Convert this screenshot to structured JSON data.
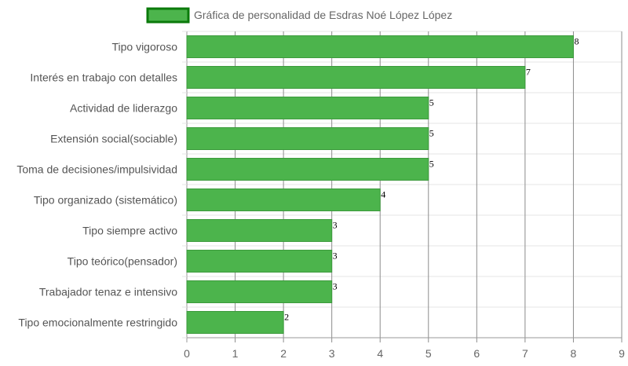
{
  "chart_data": {
    "type": "bar",
    "orientation": "horizontal",
    "legend": {
      "label": "Gráfica de personalidad de Esdras Noé López López",
      "position": "top"
    },
    "categories": [
      "Tipo vigoroso",
      "Interés en trabajo con detalles",
      "Actividad de liderazgo",
      "Extensión social(sociable)",
      "Toma de decisiones/impulsividad",
      "Tipo organizado (sistemático)",
      "Tipo siempre activo",
      "Tipo teórico(pensador)",
      "Trabajador tenaz e intensivo",
      "Tipo emocionalmente restringido"
    ],
    "values": [
      8,
      7,
      5,
      5,
      5,
      4,
      3,
      3,
      3,
      2
    ],
    "xlim": [
      0,
      9
    ],
    "xticks": [
      "0",
      "1",
      "2",
      "3",
      "4",
      "5",
      "6",
      "7",
      "8",
      "9"
    ],
    "grid": true,
    "colors": {
      "bar_fill": "#4cb44c",
      "bar_border": "#3c9a3c",
      "legend_border": "#0a7a0a",
      "grid": "#e6e6e6",
      "grid_dark": "#8c8c8c"
    }
  }
}
